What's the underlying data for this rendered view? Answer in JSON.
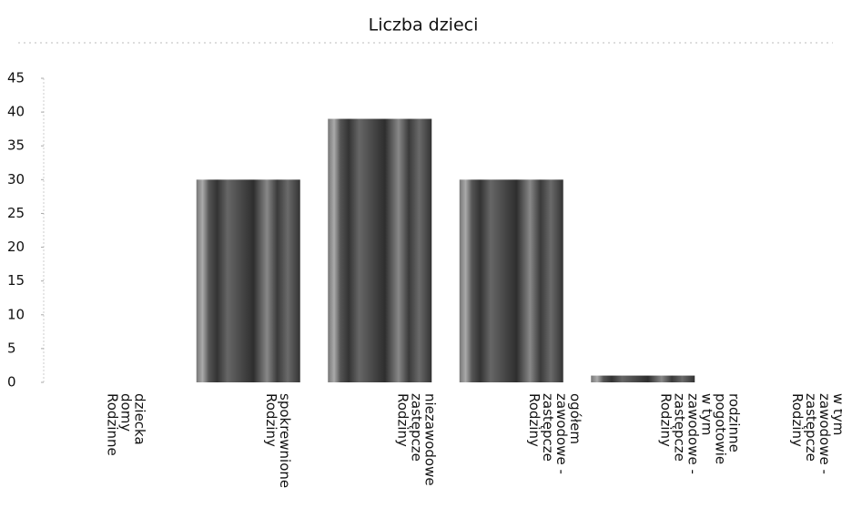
{
  "chart_data": {
    "type": "bar",
    "title": "Liczba dzieci",
    "categories": [
      "Rodzinne domy dziecka",
      "Rodziny spokrewnione",
      "Rodziny zastępcze niezawodowe",
      "Rodziny zastępcze zawodowe - ogółem",
      "Rodziny zastępcze zawodowe - w tym pogotowie rodzinne",
      "Rodziny zastępcze zawodowe - w tym specjalistyczne"
    ],
    "values": [
      0,
      30,
      39,
      30,
      1,
      0
    ],
    "ylim": [
      0,
      45
    ],
    "yticks": [
      0,
      5,
      10,
      15,
      20,
      25,
      30,
      35,
      40,
      45
    ],
    "grid": false
  }
}
